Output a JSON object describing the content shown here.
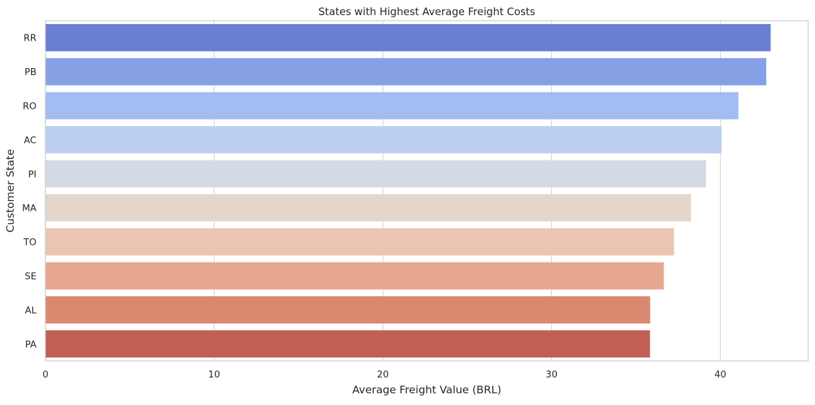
{
  "chart_data": {
    "type": "bar",
    "orientation": "horizontal",
    "title": "States with Highest Average Freight Costs",
    "xlabel": "Average Freight Value (BRL)",
    "ylabel": "Customer State",
    "xlim": [
      0,
      45.2
    ],
    "xticks": [
      0,
      10,
      20,
      30,
      40
    ],
    "grid": true,
    "categories": [
      "RR",
      "PB",
      "RO",
      "AC",
      "PI",
      "MA",
      "TO",
      "SE",
      "AL",
      "PA"
    ],
    "values": [
      42.98,
      42.72,
      41.07,
      40.07,
      39.15,
      38.26,
      37.25,
      36.65,
      35.84,
      35.83
    ],
    "colors": [
      "#6a7fd3",
      "#86a0e6",
      "#a2bdf2",
      "#bbcff1",
      "#d4dae6",
      "#e3d6cd",
      "#ebc5b2",
      "#e6a890",
      "#da8870",
      "#c15f55"
    ]
  }
}
